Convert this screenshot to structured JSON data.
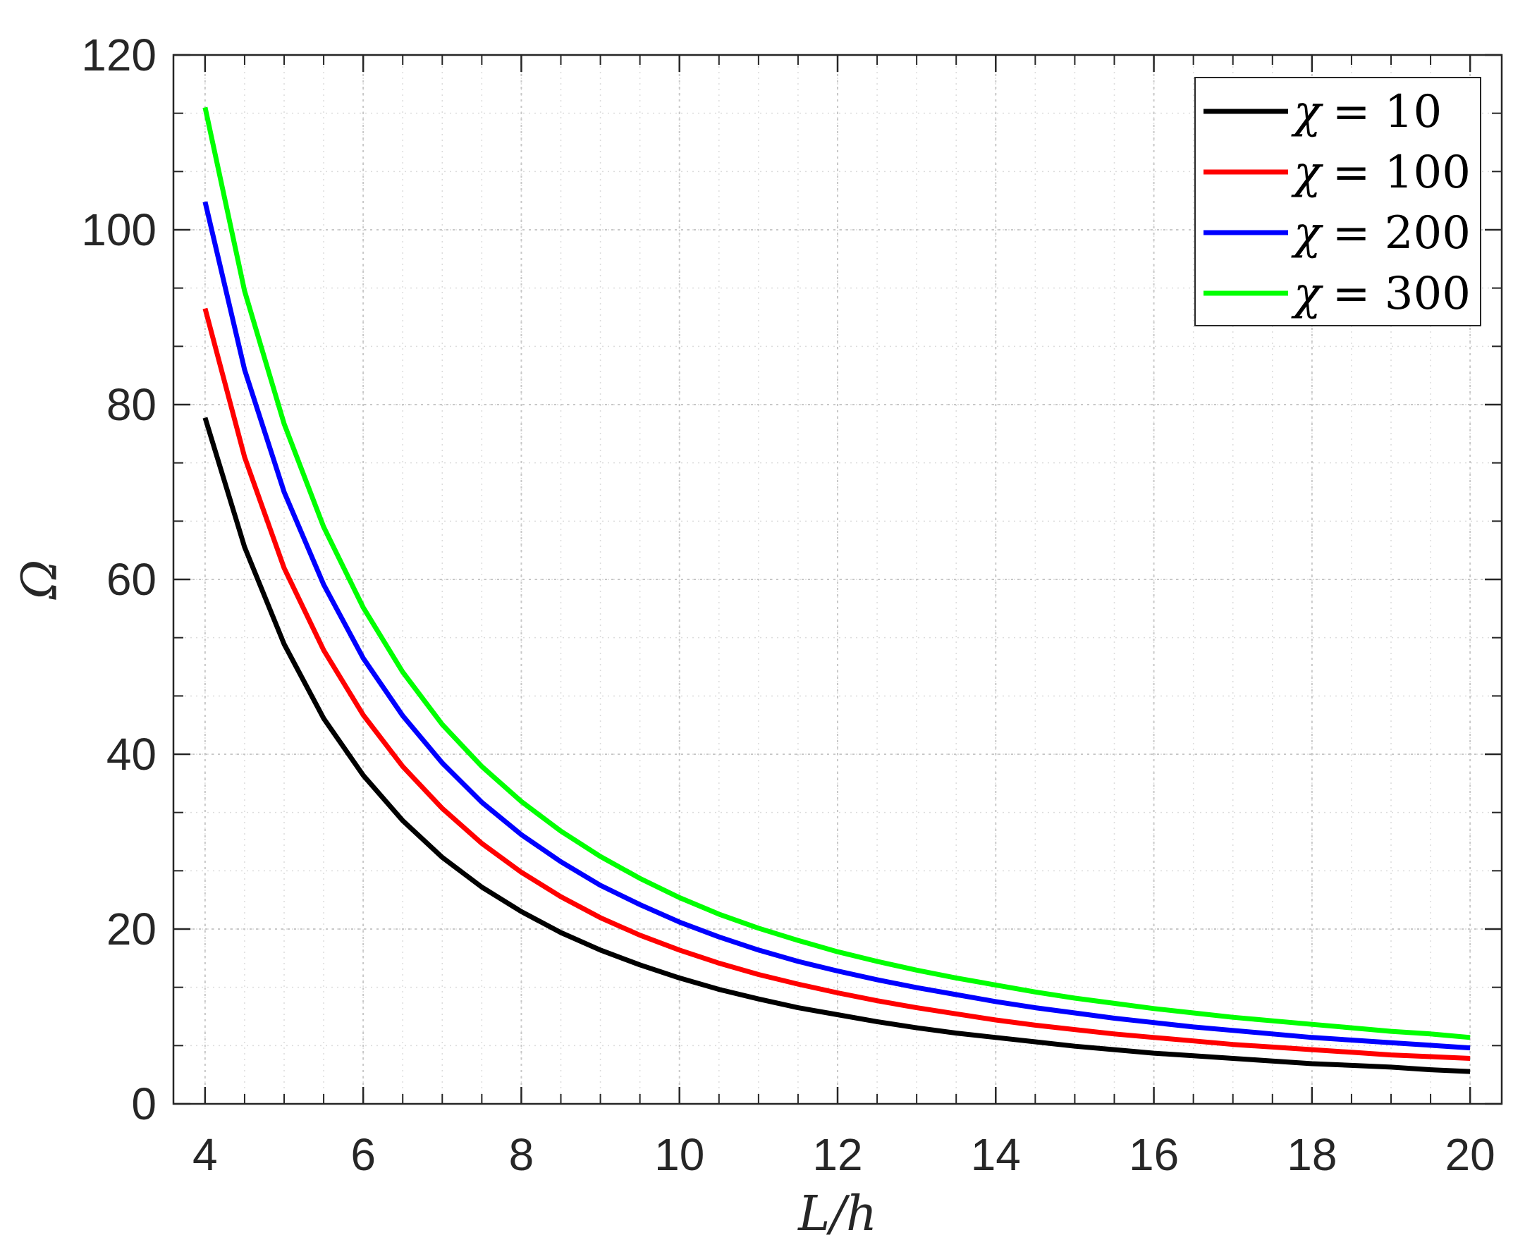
{
  "chart_data": {
    "type": "line",
    "xlabel": "L/h",
    "ylabel": "Ω",
    "xlim": [
      3.6,
      20.4
    ],
    "ylim": [
      0,
      120
    ],
    "xticks": [
      "4",
      "6",
      "8",
      "10",
      "12",
      "14",
      "16",
      "18",
      "20"
    ],
    "yticks": [
      "0",
      "20",
      "40",
      "60",
      "80",
      "100",
      "120"
    ],
    "grid": "on (major and minor, dotted)",
    "legend_position": "top-right",
    "x": [
      4,
      4.5,
      5,
      5.5,
      6,
      6.5,
      7,
      7.5,
      8,
      8.5,
      9,
      9.5,
      10,
      10.5,
      11,
      11.5,
      12,
      12.5,
      13,
      13.5,
      14,
      14.5,
      15,
      15.5,
      16,
      16.5,
      17,
      17.5,
      18,
      18.5,
      19,
      19.5,
      20
    ],
    "series": [
      {
        "name": "χ = 10",
        "legend_symbol": "χ",
        "legend_value": "= 10",
        "color": "#000000",
        "values": [
          78.5,
          63.7,
          52.6,
          44.1,
          37.6,
          32.4,
          28.2,
          24.8,
          22.0,
          19.6,
          17.6,
          15.9,
          14.4,
          13.1,
          12.0,
          11.0,
          10.2,
          9.4,
          8.7,
          8.1,
          7.6,
          7.1,
          6.6,
          6.2,
          5.8,
          5.5,
          5.2,
          4.9,
          4.6,
          4.4,
          4.2,
          3.9,
          3.7
        ]
      },
      {
        "name": "χ = 100",
        "legend_symbol": "χ",
        "legend_value": "= 100",
        "color": "#ff0000",
        "values": [
          91.0,
          74.0,
          61.3,
          51.9,
          44.5,
          38.6,
          33.8,
          29.8,
          26.5,
          23.7,
          21.3,
          19.3,
          17.6,
          16.1,
          14.8,
          13.7,
          12.7,
          11.8,
          11.0,
          10.3,
          9.6,
          9.0,
          8.5,
          8.0,
          7.6,
          7.2,
          6.8,
          6.5,
          6.2,
          5.9,
          5.6,
          5.4,
          5.2
        ]
      },
      {
        "name": "χ = 200",
        "legend_symbol": "χ",
        "legend_value": "= 200",
        "color": "#0000ff",
        "values": [
          103.2,
          84.0,
          70.0,
          59.4,
          51.0,
          44.4,
          39.0,
          34.5,
          30.8,
          27.7,
          25.0,
          22.8,
          20.8,
          19.1,
          17.6,
          16.3,
          15.2,
          14.2,
          13.3,
          12.5,
          11.7,
          11.0,
          10.4,
          9.8,
          9.3,
          8.8,
          8.4,
          8.0,
          7.6,
          7.3,
          7.0,
          6.7,
          6.4
        ]
      },
      {
        "name": "χ = 300",
        "legend_symbol": "χ",
        "legend_value": "= 300",
        "color": "#00ff00",
        "values": [
          114.0,
          93.0,
          77.8,
          66.0,
          56.8,
          49.4,
          43.4,
          38.6,
          34.6,
          31.2,
          28.3,
          25.8,
          23.6,
          21.7,
          20.1,
          18.7,
          17.4,
          16.3,
          15.3,
          14.4,
          13.6,
          12.8,
          12.1,
          11.5,
          10.9,
          10.4,
          9.9,
          9.5,
          9.1,
          8.7,
          8.3,
          8.0,
          7.6
        ]
      }
    ]
  }
}
